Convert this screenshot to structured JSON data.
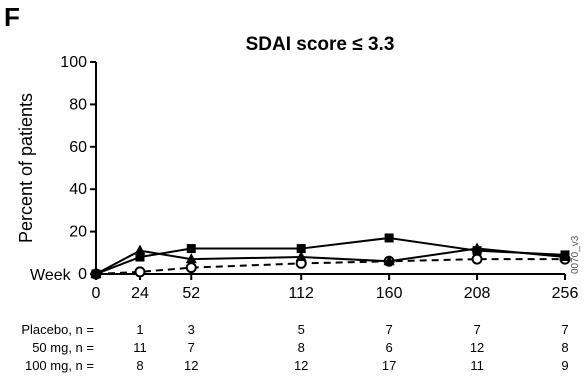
{
  "panel_label": "F",
  "chart_data": {
    "type": "line",
    "title": "SDAI score ≤ 3.3",
    "xlabel": "Week",
    "ylabel": "Percent of patients",
    "ylim": [
      0,
      100
    ],
    "yticks": [
      "0",
      "20",
      "40",
      "60",
      "80",
      "100"
    ],
    "xlim": [
      0,
      256
    ],
    "x": [
      0,
      24,
      52,
      112,
      160,
      208,
      256
    ],
    "xtick_labels": [
      "0",
      "24",
      "52",
      "112",
      "160",
      "208",
      "256"
    ],
    "grid": false,
    "series": [
      {
        "name": "Placebo",
        "marker": "open-circle",
        "line": "dashed",
        "color": "#000000",
        "values": [
          0,
          1,
          3,
          5,
          6,
          7,
          7
        ]
      },
      {
        "name": "50 mg",
        "marker": "filled-triangle",
        "line": "solid",
        "color": "#000000",
        "values": [
          0,
          11,
          7,
          8,
          6,
          12,
          8
        ]
      },
      {
        "name": "100 mg",
        "marker": "filled-square",
        "line": "solid",
        "color": "#000000",
        "values": [
          0,
          8,
          12,
          12,
          17,
          11,
          9
        ]
      }
    ],
    "n_table": {
      "rows": [
        {
          "label": "Placebo, n =",
          "values": [
            "1",
            "3",
            "5",
            "7",
            "7",
            "7"
          ]
        },
        {
          "label": "50 mg, n =",
          "values": [
            "11",
            "7",
            "8",
            "6",
            "12",
            "8"
          ]
        },
        {
          "label": "100 mg, n =",
          "values": [
            "8",
            "12",
            "12",
            "17",
            "11",
            "9"
          ]
        }
      ]
    }
  },
  "side_code": "0070_v3"
}
